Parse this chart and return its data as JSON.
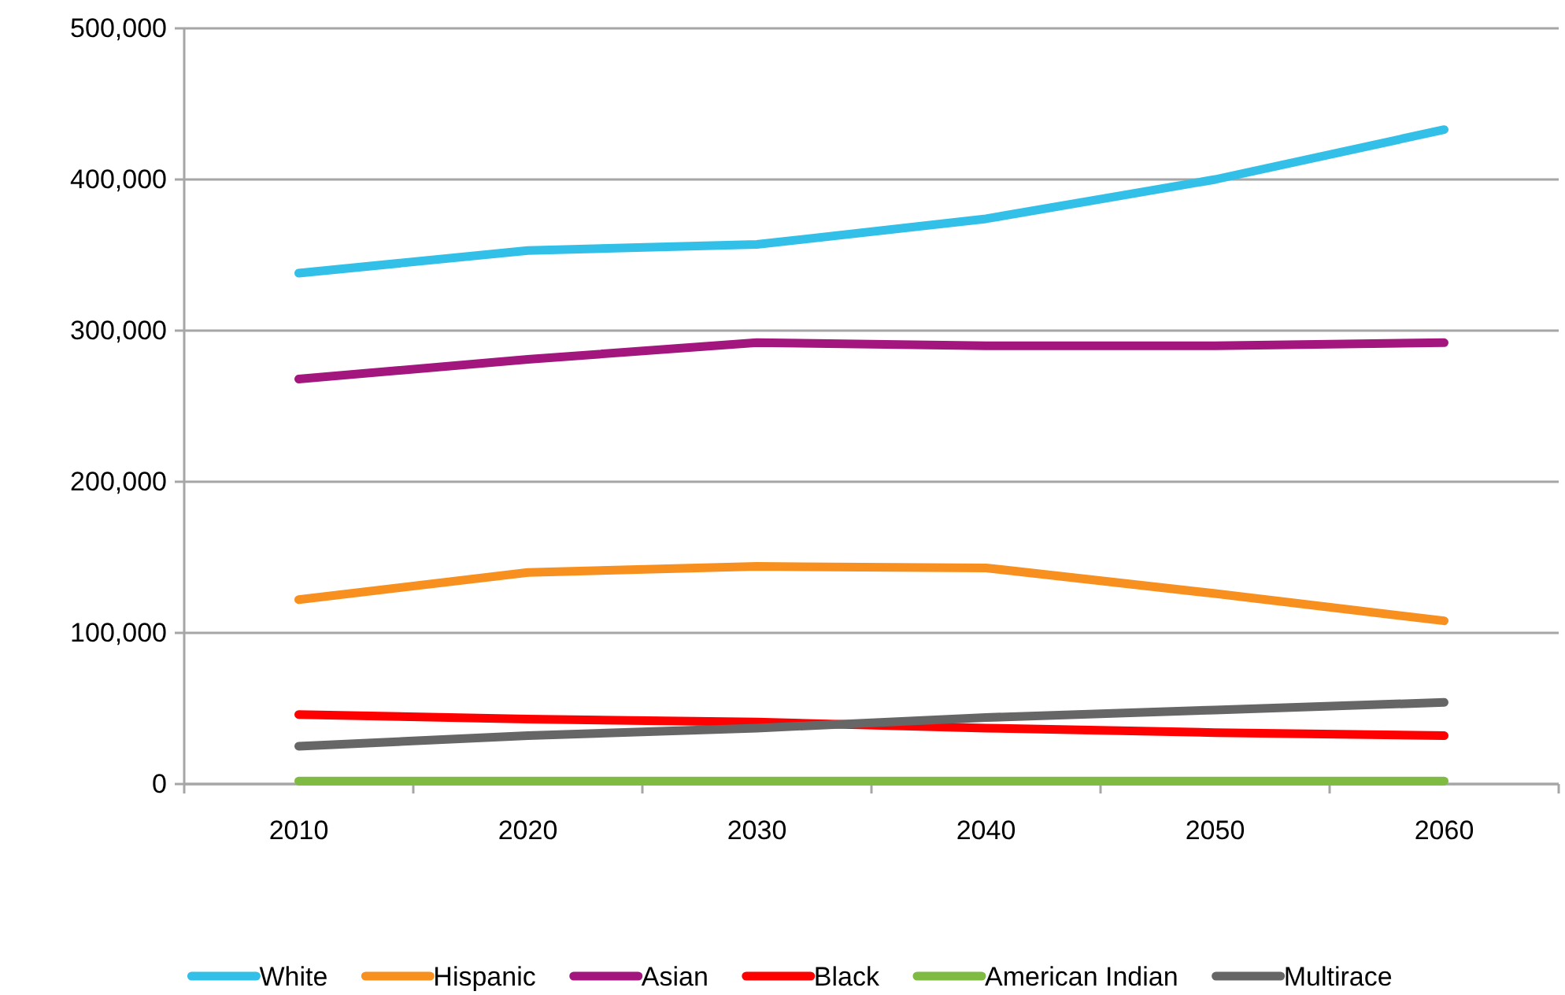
{
  "chart_data": {
    "type": "line",
    "categories": [
      "2010",
      "2020",
      "2030",
      "2040",
      "2050",
      "2060"
    ],
    "series": [
      {
        "name": "White",
        "color": "#33c0e8",
        "values": [
          338000,
          353000,
          357000,
          374000,
          400000,
          433000
        ]
      },
      {
        "name": "Hispanic",
        "color": "#f7901e",
        "values": [
          122000,
          140000,
          144000,
          143000,
          126000,
          108000
        ]
      },
      {
        "name": "Asian",
        "color": "#a2167e",
        "values": [
          268000,
          281000,
          292000,
          290000,
          290000,
          292000
        ]
      },
      {
        "name": "Black",
        "color": "#ff0000",
        "values": [
          46000,
          43000,
          41000,
          37000,
          34000,
          32000
        ]
      },
      {
        "name": "American Indian",
        "color": "#7fba42",
        "values": [
          2000,
          2000,
          2000,
          2000,
          2000,
          2000
        ]
      },
      {
        "name": "Multirace",
        "color": "#666666",
        "values": [
          25000,
          32000,
          37000,
          44000,
          49000,
          54000
        ]
      }
    ],
    "ylim": [
      0,
      500000
    ],
    "yticks": [
      {
        "value": 0,
        "label": "0"
      },
      {
        "value": 100000,
        "label": "100,000"
      },
      {
        "value": 200000,
        "label": "200,000"
      },
      {
        "value": 300000,
        "label": "300,000"
      },
      {
        "value": 400000,
        "label": "400,000"
      },
      {
        "value": 500000,
        "label": "500,000"
      }
    ],
    "grid": "y",
    "legend": "bottom",
    "marker": "none",
    "line_style": "solid"
  }
}
